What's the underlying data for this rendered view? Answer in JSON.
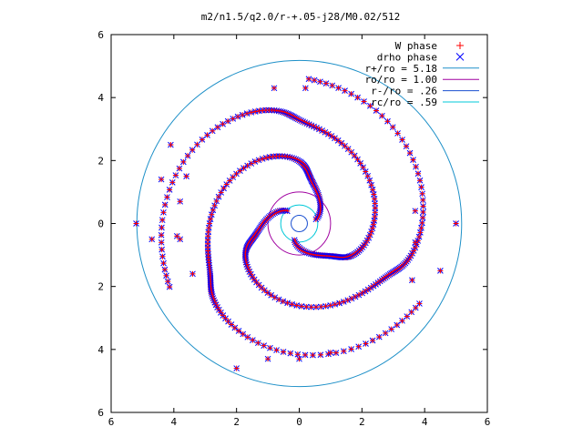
{
  "chart_data": {
    "type": "scatter",
    "title": "m2/n1.5/q2.0/r-+.05-j28/M0.02/512",
    "xlabel": "",
    "ylabel": "",
    "xlim": [
      -6,
      6
    ],
    "ylim": [
      -6,
      6
    ],
    "x_ticks": [
      "6",
      "4",
      "2",
      "0",
      "2",
      "4",
      "6"
    ],
    "y_ticks": [
      "6",
      "4",
      "2",
      "0",
      "2",
      "4",
      "6"
    ],
    "grid": false,
    "legend_position": "top-right",
    "series": [
      {
        "name": "W phase",
        "marker": "+",
        "color": "#ff0000",
        "kind": "points"
      },
      {
        "name": "drho phase",
        "marker": "x",
        "color": "#0000ff",
        "kind": "points"
      },
      {
        "name": "r+/ro = 5.18",
        "radius": 5.18,
        "color": "#1e90c8",
        "kind": "circle"
      },
      {
        "name": "ro/ro = 1.00",
        "radius": 1.0,
        "color": "#a000a0",
        "kind": "circle"
      },
      {
        "name": "r-/ro = .26",
        "radius": 0.26,
        "color": "#1a4fd0",
        "kind": "circle"
      },
      {
        "name": "rc/ro = .59",
        "radius": 0.59,
        "color": "#00c8d8",
        "kind": "circle"
      }
    ],
    "spirals": [
      {
        "r_start": 0.55,
        "r_end": 4.6,
        "theta_start": 0.25,
        "theta_span": 5.2
      },
      {
        "r_start": 0.55,
        "r_end": 4.6,
        "theta_start": 2.34,
        "theta_span": 5.2
      },
      {
        "r_start": 0.55,
        "r_end": 4.6,
        "theta_start": 4.43,
        "theta_span": 5.2
      }
    ],
    "extra_points": [
      [
        -5.2,
        0.0
      ],
      [
        -4.7,
        -0.5
      ],
      [
        -3.8,
        -0.5
      ],
      [
        -3.8,
        0.7
      ],
      [
        -4.4,
        1.4
      ],
      [
        -3.6,
        1.5
      ],
      [
        -4.1,
        2.5
      ],
      [
        -3.4,
        -1.6
      ],
      [
        5.0,
        0.0
      ],
      [
        4.5,
        -1.5
      ],
      [
        3.7,
        -0.6
      ],
      [
        3.7,
        0.4
      ],
      [
        3.6,
        -1.8
      ],
      [
        -3.9,
        -0.4
      ],
      [
        0.2,
        4.3
      ],
      [
        -0.8,
        4.3
      ],
      [
        -2.0,
        -4.6
      ],
      [
        -1.0,
        -4.3
      ],
      [
        0.0,
        -4.3
      ],
      [
        1.0,
        -4.1
      ]
    ]
  }
}
